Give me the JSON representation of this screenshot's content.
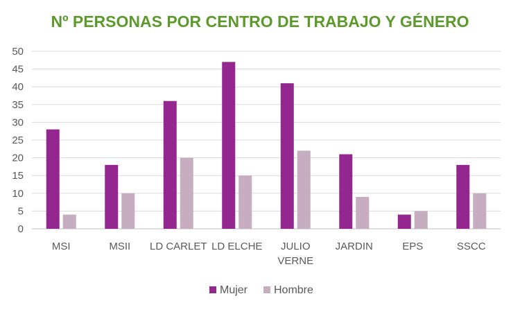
{
  "chart_data": {
    "type": "bar",
    "title": "Nº PERSONAS POR CENTRO DE TRABAJO  Y GÉNERO",
    "categories": [
      [
        "MSI"
      ],
      [
        "MSII"
      ],
      [
        "LD CARLET"
      ],
      [
        "LD ELCHE"
      ],
      [
        "JULIO",
        "VERNE"
      ],
      [
        "JARDIN"
      ],
      [
        "EPS"
      ],
      [
        "SSCC"
      ]
    ],
    "series": [
      {
        "name": "Mujer",
        "color": "#93278F",
        "values": [
          28,
          18,
          36,
          47,
          41,
          21,
          4,
          18
        ]
      },
      {
        "name": "Hombre",
        "color": "#C6ADBF",
        "values": [
          4,
          10,
          20,
          15,
          22,
          9,
          5,
          10
        ]
      }
    ],
    "ylim": [
      0,
      50
    ],
    "yticks": [
      "0",
      "5",
      "10",
      "15",
      "20",
      "25",
      "30",
      "35",
      "40",
      "45",
      "50"
    ],
    "xlabel": "",
    "ylabel": "",
    "grid": true,
    "legend": "bottom-center",
    "title_color": "#5B9A2B"
  }
}
